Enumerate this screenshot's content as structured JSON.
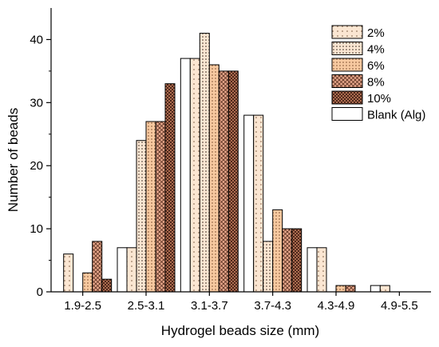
{
  "chart_data": {
    "type": "bar",
    "xlabel": "Hydrogel beads size (mm)",
    "ylabel": "Number of beads",
    "ylim": [
      0,
      45
    ],
    "yticks": [
      0,
      10,
      20,
      30,
      40
    ],
    "categories": [
      "1.9-2.5",
      "2.5-3.1",
      "3.1-3.7",
      "3.7-4.3",
      "4.3-4.9",
      "4.9-5.5"
    ],
    "series": [
      {
        "name": "Blank (Alg)",
        "pattern": "plain",
        "fill": "#ffffff",
        "values": [
          0,
          7,
          37,
          28,
          7,
          1
        ]
      },
      {
        "name": "2%",
        "pattern": "dots-sparse",
        "fill": "#fbe6d2",
        "values": [
          6,
          7,
          37,
          28,
          7,
          1
        ]
      },
      {
        "name": "4%",
        "pattern": "dots-dense",
        "fill": "#fbe6d2",
        "values": [
          0,
          24,
          41,
          8,
          0,
          0
        ]
      },
      {
        "name": "6%",
        "pattern": "dots-medium",
        "fill": "#f7c9a0",
        "values": [
          3,
          27,
          36,
          13,
          1,
          0
        ]
      },
      {
        "name": "8%",
        "pattern": "crosshatch",
        "fill": "#e8a88c",
        "values": [
          8,
          27,
          35,
          10,
          1,
          0
        ]
      },
      {
        "name": "10%",
        "pattern": "crosshatch-dense",
        "fill": "#c98060",
        "values": [
          2,
          33,
          35,
          10,
          0,
          0
        ]
      }
    ],
    "legend": {
      "placement": "top-right",
      "order": [
        "2%",
        "4%",
        "6%",
        "8%",
        "10%",
        "Blank (Alg)"
      ]
    },
    "grid": false
  }
}
